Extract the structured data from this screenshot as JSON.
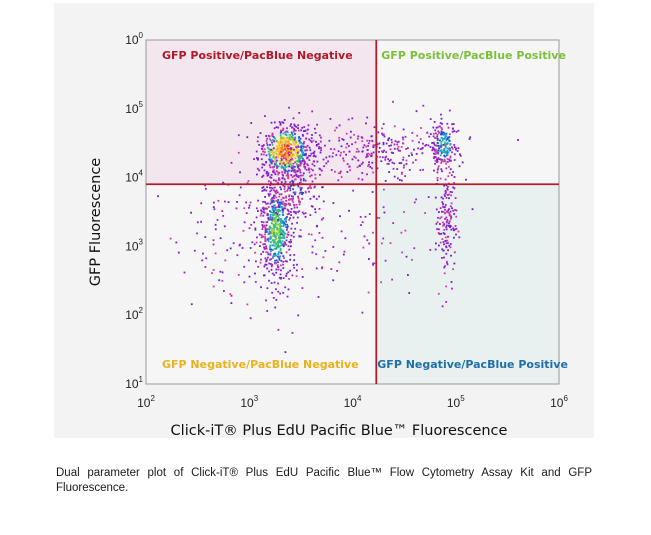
{
  "chart_data": {
    "type": "scatter",
    "xlabel": "Click-iT® Plus EdU Pacific Blue™ Fluorescence",
    "ylabel": "GFP Fluorescence",
    "xscale": "log",
    "yscale": "log",
    "xlim": [
      100,
      1000000
    ],
    "ylim": [
      10,
      1000000
    ],
    "xticks": [
      {
        "base": "10",
        "exp": "2"
      },
      {
        "base": "10",
        "exp": "3"
      },
      {
        "base": "10",
        "exp": "4"
      },
      {
        "base": "10",
        "exp": "5"
      },
      {
        "base": "10",
        "exp": "6"
      }
    ],
    "yticks": [
      {
        "base": "10",
        "exp": "1"
      },
      {
        "base": "10",
        "exp": "2"
      },
      {
        "base": "10",
        "exp": "3"
      },
      {
        "base": "10",
        "exp": "4"
      },
      {
        "base": "10",
        "exp": "5"
      },
      {
        "base": "10",
        "exp": "0"
      }
    ],
    "gates": {
      "x": 17000,
      "y": 8000
    },
    "quadrants": [
      {
        "label": "GFP Positive/PacBlue Negative",
        "position": "top-left",
        "color": "#b0182a",
        "fill": "#f3e6ee"
      },
      {
        "label": "GFP Positive/PacBlue Positive",
        "position": "top-right",
        "color": "#7cbf3a",
        "fill": "#f6f6f6"
      },
      {
        "label": "GFP Negative/PacBlue Negative",
        "position": "bottom-left",
        "color": "#e8b21a",
        "fill": "#f6f6f6"
      },
      {
        "label": "GFP Negative/PacBlue Positive",
        "position": "bottom-right",
        "color": "#1f6fa8",
        "fill": "#e8f0f0"
      }
    ],
    "populations": [
      {
        "x": 2200,
        "y": 25000,
        "density": "high"
      },
      {
        "x": 1800,
        "y": 1500,
        "density": "high"
      },
      {
        "x": 75000,
        "y": 30000,
        "density": "medium"
      },
      {
        "x": 80000,
        "y": 2000,
        "density": "low"
      }
    ],
    "colors": {
      "gate": "#b01e2d",
      "border": "#9a9a9a",
      "low": "#7a1fd6",
      "high": "#f5d020"
    }
  },
  "caption": "Dual parameter plot of Click-iT® Plus EdU Pacific Blue™ Flow Cytometry Assay Kit and GFP Fluorescence."
}
